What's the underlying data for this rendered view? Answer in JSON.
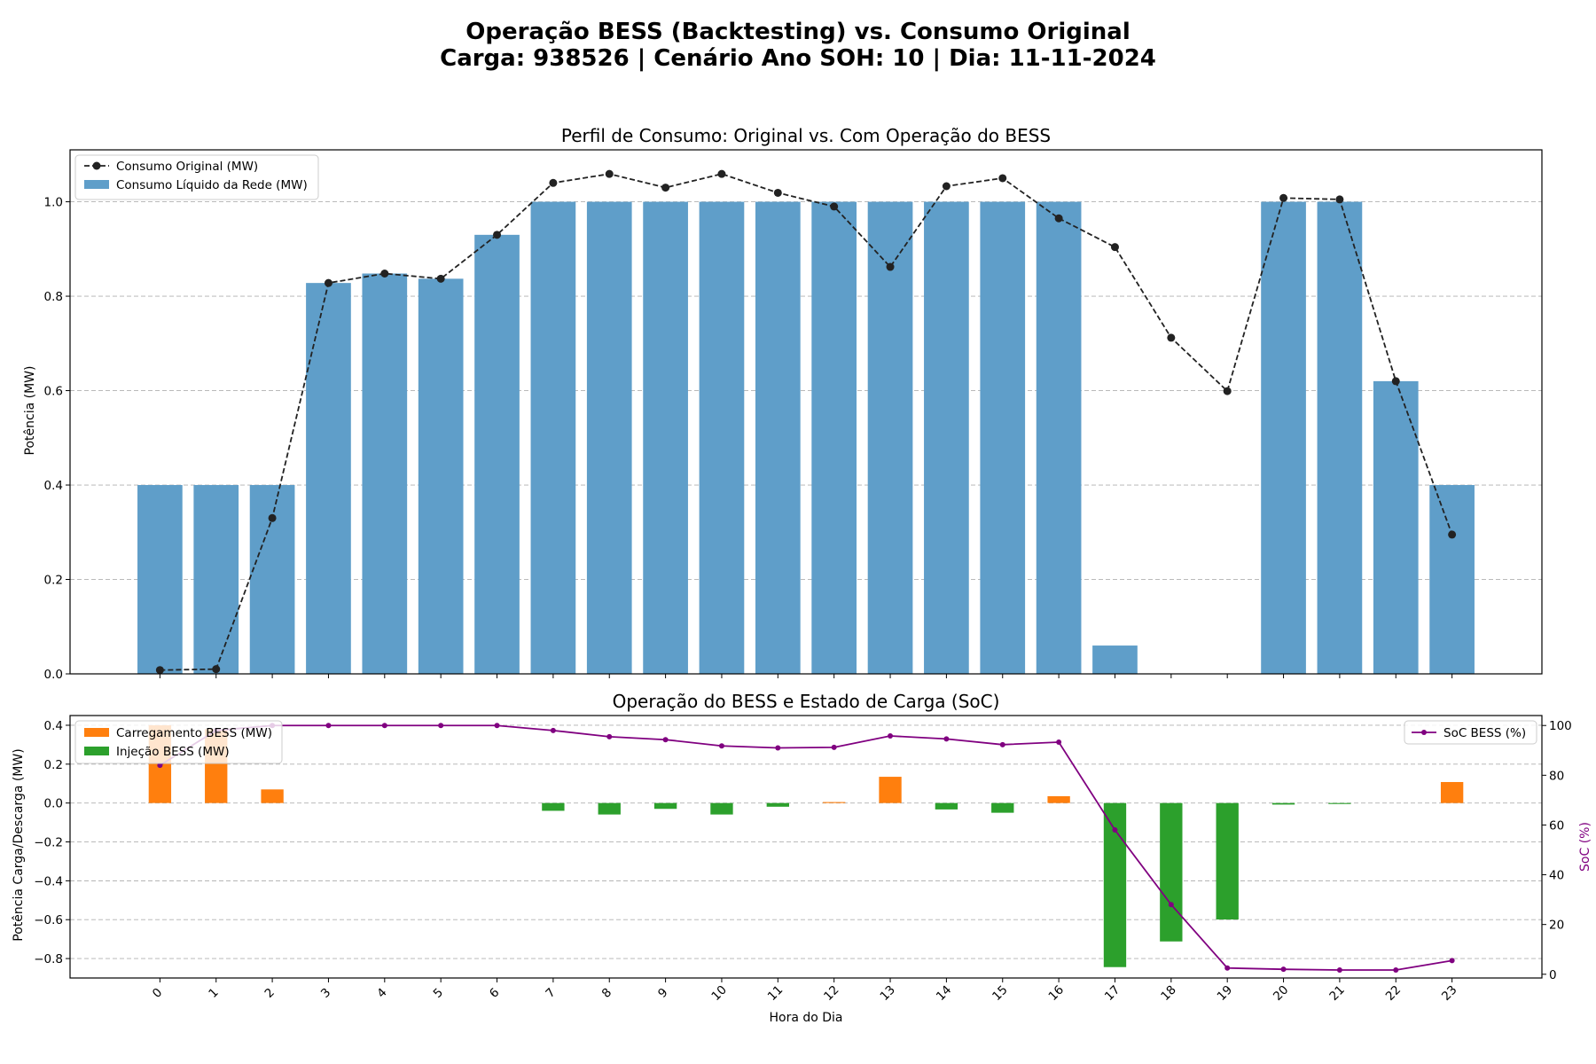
{
  "figure": {
    "title_line1": "Operação BESS (Backtesting) vs. Consumo Original",
    "title_line2": "Carga: 938526 | Cenário Ano SOH: 10 | Dia: 11-11-2024"
  },
  "chart_data": [
    {
      "type": "bar",
      "title": "Perfil de Consumo: Original vs. Com Operação do BESS",
      "xlabel": "",
      "ylabel": "Potência (MW)",
      "ylim": [
        0,
        1.11
      ],
      "yticks": [
        0.0,
        0.2,
        0.4,
        0.6,
        0.8,
        1.0
      ],
      "ytick_labels": [
        "0.0",
        "0.2",
        "0.4",
        "0.6",
        "0.8",
        "1.0"
      ],
      "grid": "horizontal dashed",
      "legend_position": "top-left",
      "categories": [
        0,
        1,
        2,
        3,
        4,
        5,
        6,
        7,
        8,
        9,
        10,
        11,
        12,
        13,
        14,
        15,
        16,
        17,
        18,
        19,
        20,
        21,
        22,
        23
      ],
      "series": [
        {
          "name": "Consumo Original (MW)",
          "kind": "line",
          "color": "#222222",
          "values": [
            0.008,
            0.01,
            0.33,
            0.828,
            0.848,
            0.837,
            0.93,
            1.04,
            1.059,
            1.03,
            1.059,
            1.019,
            0.99,
            0.862,
            1.033,
            1.05,
            0.965,
            0.904,
            0.712,
            0.599,
            1.008,
            1.005,
            0.62,
            0.295
          ]
        },
        {
          "name": "Consumo Líquido da Rede (MW)",
          "kind": "bar",
          "color": "#5f9ec9",
          "values": [
            0.4,
            0.4,
            0.4,
            0.828,
            0.848,
            0.837,
            0.93,
            1.0,
            1.0,
            1.0,
            1.0,
            1.0,
            1.0,
            1.0,
            1.0,
            1.0,
            1.0,
            0.06,
            0.0,
            0.0,
            1.0,
            1.0,
            0.62,
            0.4
          ]
        }
      ]
    },
    {
      "type": "bar",
      "title": "Operação do BESS e Estado de Carga (SoC)",
      "xlabel": "Hora do Dia",
      "ylabel": "Potência Carga/Descarga (MW)",
      "ylim": [
        -0.9,
        0.45
      ],
      "yticks": [
        -0.8,
        -0.6,
        -0.4,
        -0.2,
        0.0,
        0.2,
        0.4
      ],
      "ytick_labels": [
        "−0.8",
        "−0.6",
        "−0.4",
        "−0.2",
        "0.0",
        "0.2",
        "0.4"
      ],
      "y2label": "SoC (%)",
      "y2lim": [
        -1.5,
        104
      ],
      "y2ticks": [
        0,
        20,
        40,
        60,
        80,
        100
      ],
      "y2tick_labels": [
        "0",
        "20",
        "40",
        "60",
        "80",
        "100"
      ],
      "grid": "horizontal dashed",
      "legend_position": "top-left",
      "legend2_position": "top-right",
      "categories": [
        0,
        1,
        2,
        3,
        4,
        5,
        6,
        7,
        8,
        9,
        10,
        11,
        12,
        13,
        14,
        15,
        16,
        17,
        18,
        19,
        20,
        21,
        22,
        23
      ],
      "category_labels": [
        "0",
        "1",
        "2",
        "3",
        "4",
        "5",
        "6",
        "7",
        "8",
        "9",
        "10",
        "11",
        "12",
        "13",
        "14",
        "15",
        "16",
        "17",
        "18",
        "19",
        "20",
        "21",
        "22",
        "23"
      ],
      "series": [
        {
          "name": "Carregamento BESS (MW)",
          "kind": "bar",
          "color": "#ff7f0e",
          "values": [
            0.4,
            0.38,
            0.07,
            0,
            0,
            0,
            0,
            0,
            0,
            0,
            0,
            0,
            0.005,
            0.135,
            0,
            0,
            0.035,
            0,
            0,
            0,
            0,
            0,
            0,
            0.108
          ]
        },
        {
          "name": "Injeção BESS (MW)",
          "kind": "bar",
          "color": "#2ca02c",
          "values": [
            0,
            0,
            0,
            0,
            0,
            0,
            0,
            -0.04,
            -0.059,
            -0.03,
            -0.059,
            -0.019,
            0,
            0,
            -0.033,
            -0.05,
            0,
            -0.844,
            -0.712,
            -0.599,
            -0.008,
            -0.005,
            0,
            0
          ]
        },
        {
          "name": "SoC BESS (%)",
          "kind": "line",
          "axis": "right",
          "color": "#800080",
          "values": [
            84,
            98,
            100,
            100,
            100,
            100,
            100,
            98,
            95.5,
            94.3,
            91.8,
            91,
            91.2,
            95.8,
            94.6,
            92.3,
            93.3,
            58,
            28,
            2.5,
            2.0,
            1.7,
            1.7,
            5.5
          ]
        }
      ]
    }
  ]
}
